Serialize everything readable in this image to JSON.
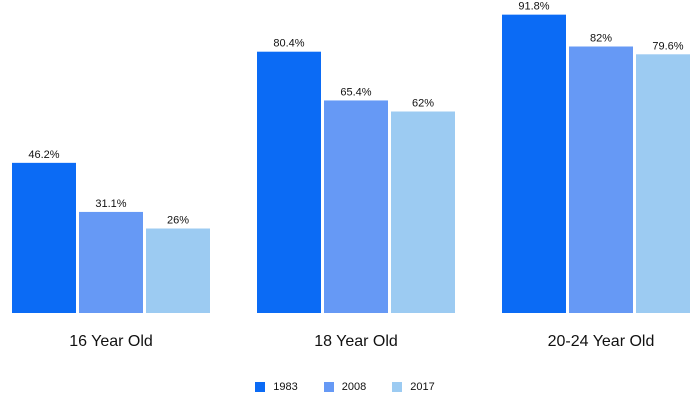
{
  "chart_data": {
    "type": "bar",
    "categories": [
      "16 Year Old",
      "18 Year Old",
      "20-24 Year Old"
    ],
    "series": [
      {
        "name": "1983",
        "values": [
          46.2,
          80.4,
          91.8
        ],
        "labels": [
          "46.2%",
          "80.4%",
          "91.8%"
        ],
        "color": "#0B6BF5"
      },
      {
        "name": "2008",
        "values": [
          31.1,
          65.4,
          82
        ],
        "labels": [
          "31.1%",
          "65.4%",
          "82%"
        ],
        "color": "#6699F5"
      },
      {
        "name": "2017",
        "values": [
          26,
          62,
          79.6
        ],
        "labels": [
          "26%",
          "62%",
          "79.6%"
        ],
        "color": "#9CCBF2"
      }
    ],
    "title": "",
    "xlabel": "",
    "ylabel": "",
    "grid": false,
    "legend": "bottom-center"
  }
}
